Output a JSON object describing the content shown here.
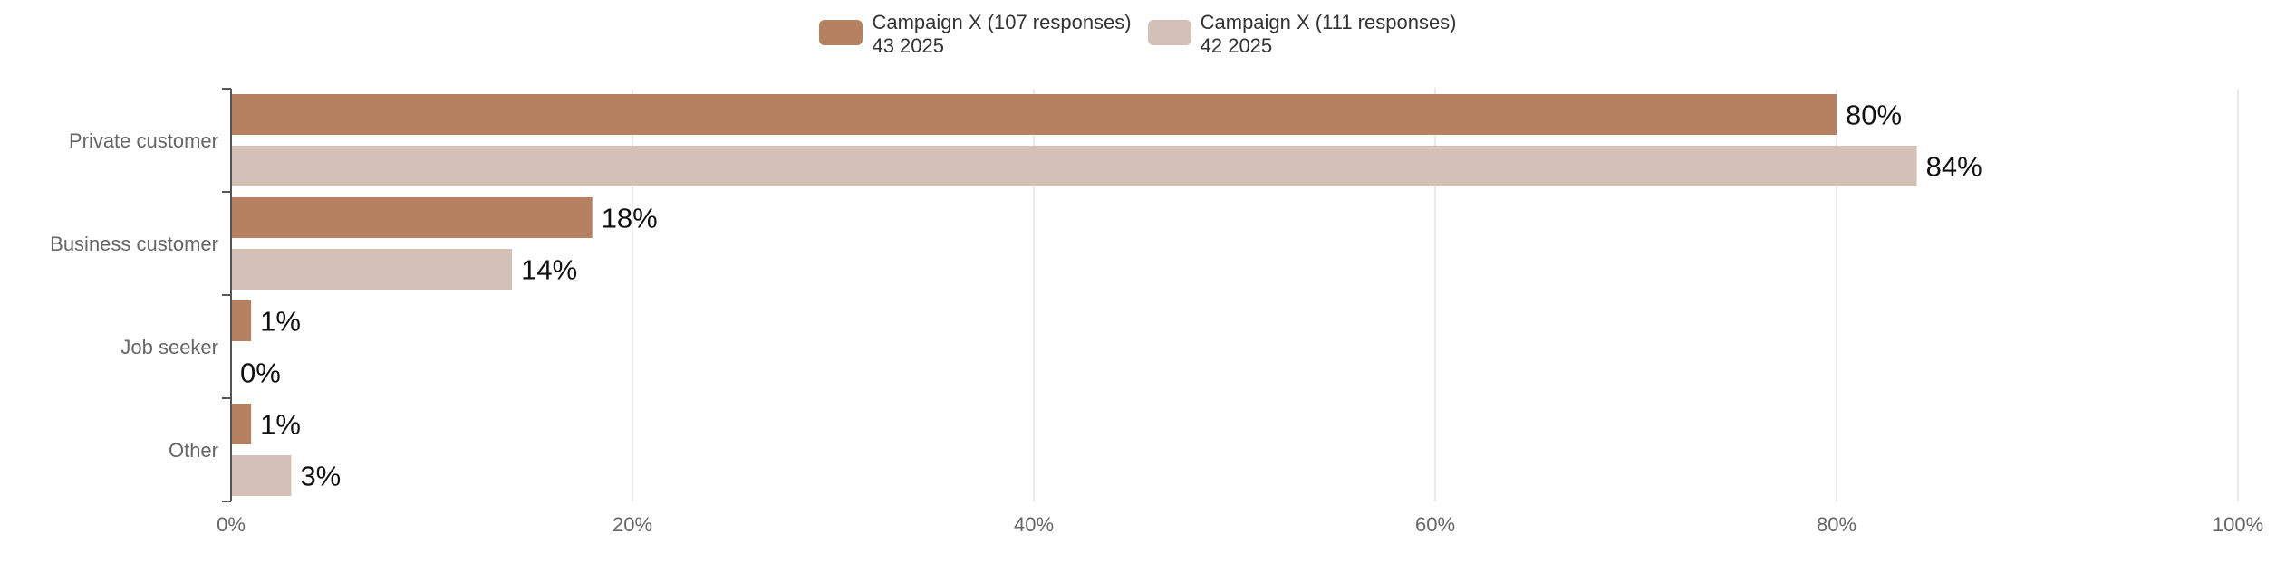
{
  "legend": [
    {
      "label": "Campaign X (107 responses)\n43 2025",
      "color": "#b58161"
    },
    {
      "label": "Campaign X (111 responses)\n42 2025",
      "color": "#d3c1b7"
    }
  ],
  "colors": {
    "axis": "#555555",
    "grid": "#e3e3ea",
    "category_text": "#666666",
    "tick_text": "#666666",
    "value_label": "#111111"
  },
  "chart_data": {
    "type": "bar",
    "orientation": "horizontal",
    "categories": [
      "Private customer",
      "Business customer",
      "Job seeker",
      "Other"
    ],
    "series": [
      {
        "name": "Campaign X (107 responses)\n43 2025",
        "values": [
          80,
          18,
          1,
          1
        ],
        "labels": [
          "80%",
          "18%",
          "1%",
          "1%"
        ]
      },
      {
        "name": "Campaign X (111 responses)\n42 2025",
        "values": [
          84,
          14,
          0,
          3
        ],
        "labels": [
          "84%",
          "14%",
          "0%",
          "3%"
        ]
      }
    ],
    "xlim": [
      0,
      100
    ],
    "xticks": [
      0,
      20,
      40,
      60,
      80,
      100
    ],
    "xtick_labels": [
      "0%",
      "20%",
      "40%",
      "60%",
      "80%",
      "100%"
    ],
    "grid": true,
    "legend_position": "top-center",
    "title": "",
    "xlabel": "",
    "ylabel": ""
  }
}
